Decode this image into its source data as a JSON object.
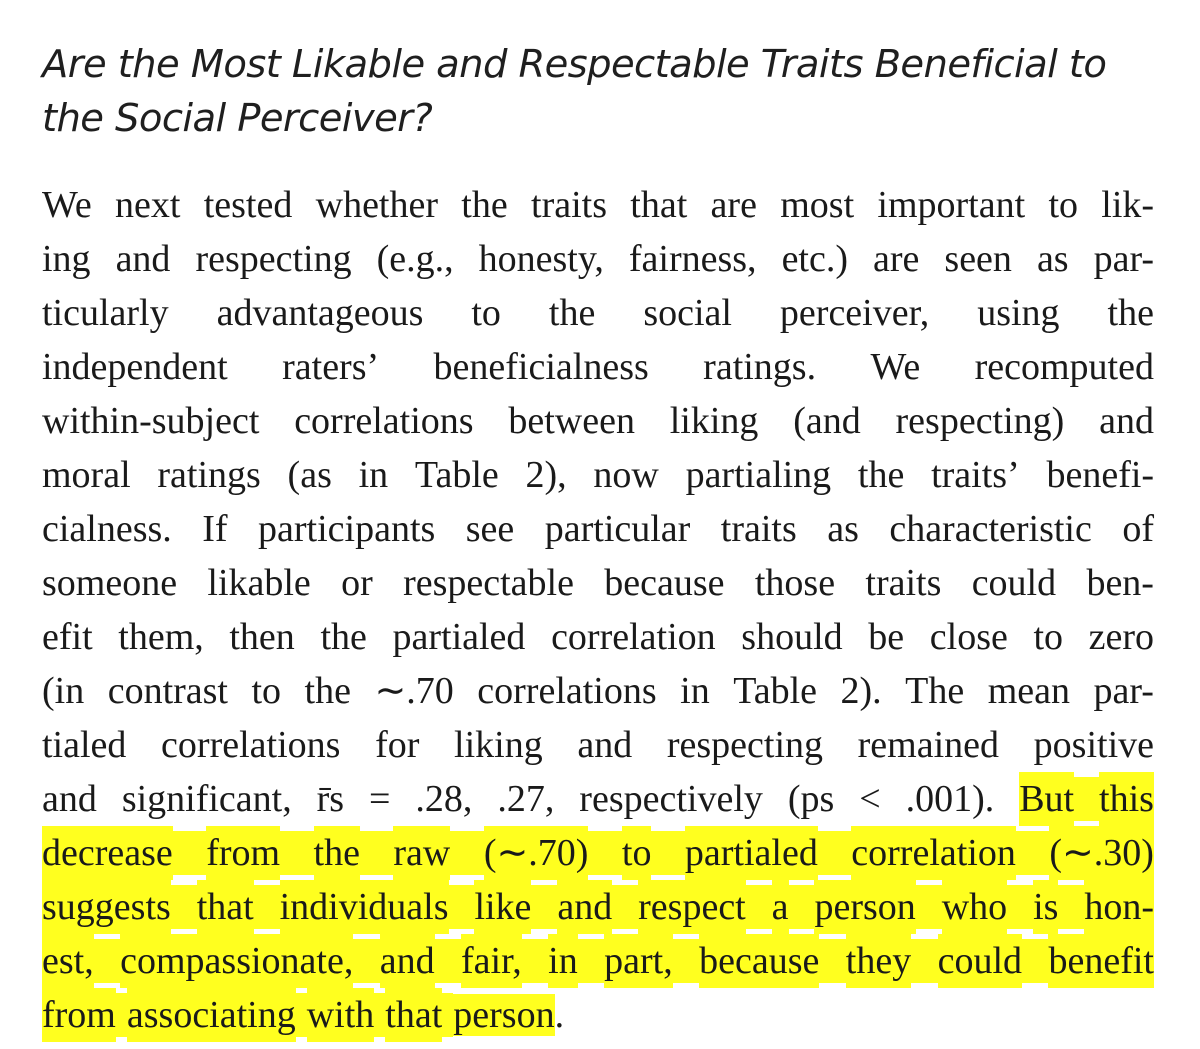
{
  "section": {
    "heading_lines": [
      "Are the Most Likable and Respectable Traits Beneficial to",
      "the Social Perceiver?"
    ]
  },
  "paragraph": {
    "lines": [
      {
        "text": "We next tested whether the traits that are most important to lik-",
        "highlight_start": null
      },
      {
        "text": "ing and respecting (e.g., honesty, fairness, etc.) are seen as par-",
        "highlight_start": null
      },
      {
        "text": "ticularly advantageous to the social perceiver, using the",
        "highlight_start": null
      },
      {
        "text": "independent raters’ beneficialness ratings. We recomputed",
        "highlight_start": null
      },
      {
        "text": "within-subject correlations between liking (and respecting) and",
        "highlight_start": null
      },
      {
        "text": "moral ratings (as in Table 2), now partialing the traits’ benefi-",
        "highlight_start": null
      },
      {
        "text": "cialness. If participants see particular traits as characteristic of",
        "highlight_start": null
      },
      {
        "text": "someone likable or respectable because those traits could ben-",
        "highlight_start": null
      },
      {
        "text": "efit them, then the partialed correlation should be close to zero",
        "highlight_start": null
      },
      {
        "text": "(in contrast to the ∼.70 correlations in Table 2). The mean par-",
        "highlight_start": null
      },
      {
        "text": "tialed correlations for liking and respecting remained positive",
        "highlight_start": null
      },
      {
        "text": "and significant, r̄s = .28, .27, respectively (ps < .001). But this",
        "highlight_start": 10
      },
      {
        "text": "decrease from the raw (∼.70) to partialed correlation (∼.30)",
        "highlight_start": 0
      },
      {
        "text": "suggests that individuals like and respect a person who is hon-",
        "highlight_start": 0
      },
      {
        "text": "est, compassionate, and fair, in part, because they could benefit",
        "highlight_start": 0
      },
      {
        "text": "from associating with that person.",
        "highlight_start": 0,
        "last": true
      }
    ],
    "highlight_color": "#ffff1f",
    "text_color": "#1a1a1a"
  }
}
